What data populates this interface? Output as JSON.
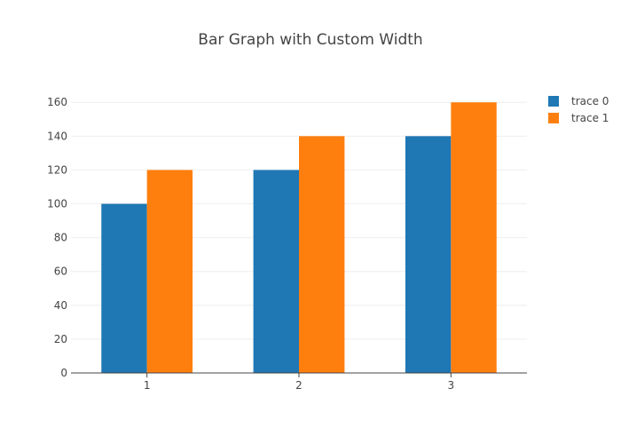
{
  "chart_data": {
    "type": "bar",
    "title": "Bar Graph with Custom Width",
    "xlabel": "",
    "ylabel": "",
    "categories": [
      "1",
      "2",
      "3"
    ],
    "series": [
      {
        "name": "trace 0",
        "values": [
          100,
          120,
          140
        ],
        "color": "#1f77b4"
      },
      {
        "name": "trace 1",
        "values": [
          120,
          140,
          160
        ],
        "color": "#ff7f0e"
      }
    ],
    "ylim": [
      0,
      168
    ],
    "yticks": [
      0,
      20,
      40,
      60,
      80,
      100,
      120,
      140,
      160
    ],
    "grid": true,
    "legend_position": "top-right",
    "colors": {
      "grid": "#eeeeee",
      "axis": "#444444",
      "text": "#444444"
    }
  }
}
